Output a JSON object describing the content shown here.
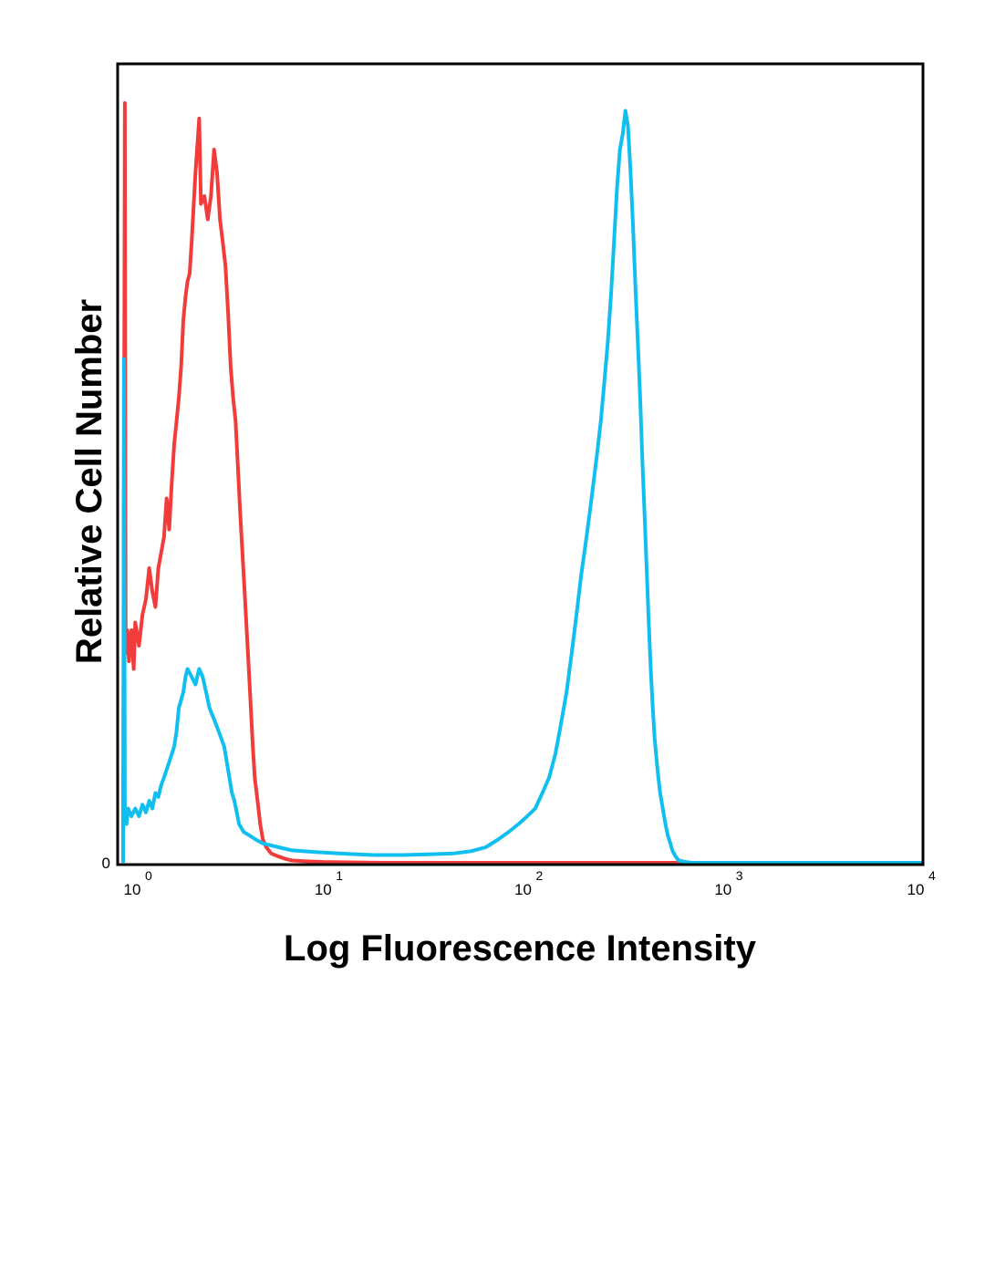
{
  "chart_data": {
    "type": "line",
    "title": "",
    "xlabel": "Log Fluorescence Intensity",
    "ylabel": "Relative Cell Number",
    "x_scale": "log",
    "xlim": [
      1,
      10000
    ],
    "ylim": [
      0,
      100
    ],
    "grid": false,
    "legend": "none",
    "y_ticks": [
      {
        "value": 0,
        "label": "0"
      }
    ],
    "x_ticks": [
      {
        "value": 1,
        "base": "10",
        "exp": "0"
      },
      {
        "value": 10,
        "base": "10",
        "exp": "1"
      },
      {
        "value": 100,
        "base": "10",
        "exp": "2"
      },
      {
        "value": 1000,
        "base": "10",
        "exp": "3"
      },
      {
        "value": 10000,
        "base": "10",
        "exp": "4"
      }
    ],
    "series": [
      {
        "color": "#f23b3b",
        "points": [
          [
            1.0,
            0
          ],
          [
            1.02,
            98
          ],
          [
            1.03,
            27
          ],
          [
            1.05,
            30
          ],
          [
            1.07,
            26
          ],
          [
            1.1,
            30
          ],
          [
            1.13,
            25
          ],
          [
            1.15,
            31
          ],
          [
            1.2,
            28
          ],
          [
            1.25,
            32
          ],
          [
            1.3,
            34
          ],
          [
            1.35,
            38
          ],
          [
            1.4,
            35
          ],
          [
            1.45,
            33
          ],
          [
            1.5,
            38
          ],
          [
            1.55,
            40
          ],
          [
            1.6,
            42
          ],
          [
            1.65,
            47
          ],
          [
            1.7,
            43
          ],
          [
            1.75,
            49
          ],
          [
            1.8,
            54
          ],
          [
            1.85,
            57
          ],
          [
            1.9,
            60
          ],
          [
            1.95,
            64
          ],
          [
            2.0,
            70
          ],
          [
            2.05,
            73
          ],
          [
            2.1,
            75
          ],
          [
            2.15,
            76
          ],
          [
            2.2,
            80
          ],
          [
            2.3,
            89
          ],
          [
            2.4,
            96
          ],
          [
            2.45,
            85
          ],
          [
            2.55,
            86
          ],
          [
            2.65,
            83
          ],
          [
            2.75,
            86
          ],
          [
            2.85,
            92
          ],
          [
            2.95,
            89
          ],
          [
            3.05,
            83
          ],
          [
            3.15,
            80
          ],
          [
            3.25,
            77
          ],
          [
            3.35,
            71
          ],
          [
            3.45,
            64
          ],
          [
            3.55,
            60
          ],
          [
            3.65,
            57
          ],
          [
            3.75,
            51
          ],
          [
            3.85,
            45
          ],
          [
            3.95,
            40
          ],
          [
            4.05,
            35
          ],
          [
            4.15,
            30
          ],
          [
            4.25,
            25
          ],
          [
            4.35,
            20
          ],
          [
            4.45,
            15
          ],
          [
            4.55,
            11
          ],
          [
            4.7,
            8
          ],
          [
            4.85,
            5
          ],
          [
            5.0,
            3
          ],
          [
            5.2,
            2
          ],
          [
            5.5,
            1.2
          ],
          [
            6.0,
            0.8
          ],
          [
            6.5,
            0.5
          ],
          [
            7.0,
            0.3
          ],
          [
            8.0,
            0.2
          ],
          [
            10,
            0.1
          ],
          [
            20,
            0
          ],
          [
            100,
            0
          ],
          [
            1000,
            0
          ],
          [
            10000,
            0
          ]
        ]
      },
      {
        "color": "#10bff0",
        "points": [
          [
            1.0,
            0
          ],
          [
            1.01,
            65
          ],
          [
            1.02,
            7
          ],
          [
            1.04,
            5
          ],
          [
            1.06,
            7
          ],
          [
            1.1,
            6
          ],
          [
            1.15,
            7
          ],
          [
            1.2,
            6
          ],
          [
            1.25,
            7.5
          ],
          [
            1.3,
            6.5
          ],
          [
            1.35,
            8
          ],
          [
            1.4,
            7
          ],
          [
            1.45,
            9
          ],
          [
            1.5,
            8.5
          ],
          [
            1.55,
            10
          ],
          [
            1.6,
            11
          ],
          [
            1.65,
            12
          ],
          [
            1.7,
            13
          ],
          [
            1.75,
            14
          ],
          [
            1.8,
            15
          ],
          [
            1.85,
            17
          ],
          [
            1.9,
            20
          ],
          [
            1.95,
            21
          ],
          [
            2.0,
            22
          ],
          [
            2.05,
            24
          ],
          [
            2.1,
            25
          ],
          [
            2.2,
            24
          ],
          [
            2.3,
            23
          ],
          [
            2.4,
            25
          ],
          [
            2.5,
            24
          ],
          [
            2.6,
            22
          ],
          [
            2.7,
            20
          ],
          [
            2.8,
            19
          ],
          [
            2.9,
            18
          ],
          [
            3.0,
            17
          ],
          [
            3.1,
            16
          ],
          [
            3.2,
            15
          ],
          [
            3.3,
            13
          ],
          [
            3.4,
            11
          ],
          [
            3.5,
            9
          ],
          [
            3.6,
            8
          ],
          [
            3.7,
            6.5
          ],
          [
            3.8,
            5
          ],
          [
            4.0,
            4
          ],
          [
            4.3,
            3.5
          ],
          [
            4.6,
            3
          ],
          [
            5.0,
            2.5
          ],
          [
            6.0,
            2
          ],
          [
            7.0,
            1.6
          ],
          [
            9.0,
            1.4
          ],
          [
            12,
            1.2
          ],
          [
            18,
            1.0
          ],
          [
            25,
            1.0
          ],
          [
            35,
            1.1
          ],
          [
            45,
            1.2
          ],
          [
            55,
            1.5
          ],
          [
            65,
            2
          ],
          [
            75,
            3
          ],
          [
            85,
            4
          ],
          [
            95,
            5
          ],
          [
            105,
            6
          ],
          [
            115,
            7
          ],
          [
            125,
            9
          ],
          [
            135,
            11
          ],
          [
            145,
            14
          ],
          [
            155,
            18
          ],
          [
            165,
            22
          ],
          [
            175,
            27
          ],
          [
            185,
            32
          ],
          [
            195,
            37
          ],
          [
            205,
            41
          ],
          [
            215,
            45
          ],
          [
            225,
            49
          ],
          [
            235,
            53
          ],
          [
            245,
            57
          ],
          [
            255,
            62
          ],
          [
            265,
            67
          ],
          [
            275,
            73
          ],
          [
            285,
            80
          ],
          [
            295,
            87
          ],
          [
            305,
            92
          ],
          [
            315,
            94
          ],
          [
            325,
            97
          ],
          [
            335,
            95
          ],
          [
            345,
            89
          ],
          [
            355,
            82
          ],
          [
            365,
            74
          ],
          [
            375,
            67
          ],
          [
            385,
            60
          ],
          [
            395,
            52
          ],
          [
            405,
            45
          ],
          [
            415,
            38
          ],
          [
            425,
            31
          ],
          [
            435,
            25
          ],
          [
            445,
            20
          ],
          [
            455,
            16
          ],
          [
            470,
            12
          ],
          [
            485,
            9
          ],
          [
            500,
            7
          ],
          [
            515,
            5
          ],
          [
            530,
            3.5
          ],
          [
            545,
            2.5
          ],
          [
            560,
            1.5
          ],
          [
            580,
            0.8
          ],
          [
            600,
            0.3
          ],
          [
            650,
            0.1
          ],
          [
            700,
            0
          ],
          [
            1000,
            0
          ],
          [
            10000,
            0
          ]
        ]
      }
    ]
  }
}
